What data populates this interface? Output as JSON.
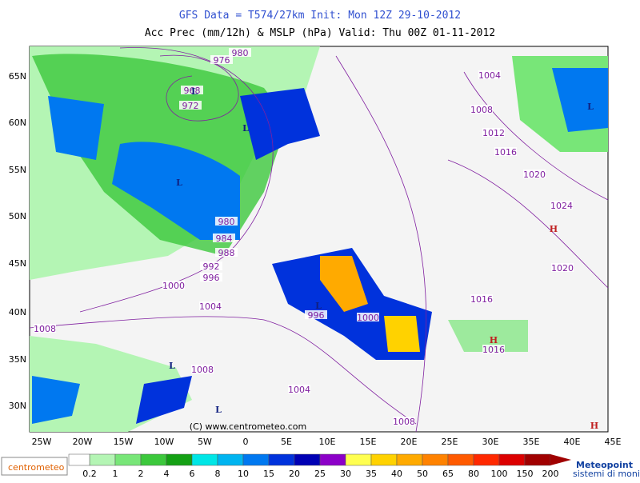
{
  "header": {
    "line1": "GFS Data = T574/27km   Init: Mon 12Z 29-10-2012",
    "line2": "Acc Prec (mm/12h) & MSLP (hPa)  Valid: Thu 00Z 01-11-2012"
  },
  "map": {
    "lat_labels": [
      "65N",
      "60N",
      "55N",
      "50N",
      "45N",
      "40N",
      "35N",
      "30N"
    ],
    "lon_labels": [
      "25W",
      "20W",
      "15W",
      "10W",
      "5W",
      "0",
      "5E",
      "10E",
      "15E",
      "20E",
      "25E",
      "30E",
      "35E",
      "40E",
      "45E"
    ],
    "isobar_labels": [
      "980",
      "976",
      "968",
      "972",
      "1004",
      "1008",
      "1012",
      "1016",
      "1020",
      "1024",
      "1020",
      "980",
      "984",
      "988",
      "992",
      "996",
      "1000",
      "1004",
      "1008",
      "996",
      "1000",
      "1016",
      "1016",
      "1008",
      "1004",
      "1008"
    ],
    "pressure_centers": [
      "L",
      "L",
      "L",
      "L",
      "L",
      "L",
      "L",
      "H",
      "H",
      "H"
    ],
    "copyright": "(C) www.centrometeo.com"
  },
  "legend": {
    "labels": [
      "0.2",
      "1",
      "2",
      "4",
      "6",
      "8",
      "10",
      "15",
      "20",
      "25",
      "30",
      "35",
      "40",
      "50",
      "65",
      "80",
      "100",
      "150",
      "200"
    ],
    "colors": [
      "#ffffff",
      "#b4f5b4",
      "#78e678",
      "#3cc83c",
      "#14a014",
      "#00e6e6",
      "#00b4f0",
      "#0078f0",
      "#0032dc",
      "#0000b4",
      "#8c00c8",
      "#ffff50",
      "#ffd200",
      "#ffaa00",
      "#ff8200",
      "#ff5a00",
      "#ff2800",
      "#dc0000",
      "#a00000"
    ]
  },
  "logos": {
    "left": "centrometeo",
    "right": "Meteopoint",
    "right_sub": "sistemi di monitoraggio ambientale"
  }
}
